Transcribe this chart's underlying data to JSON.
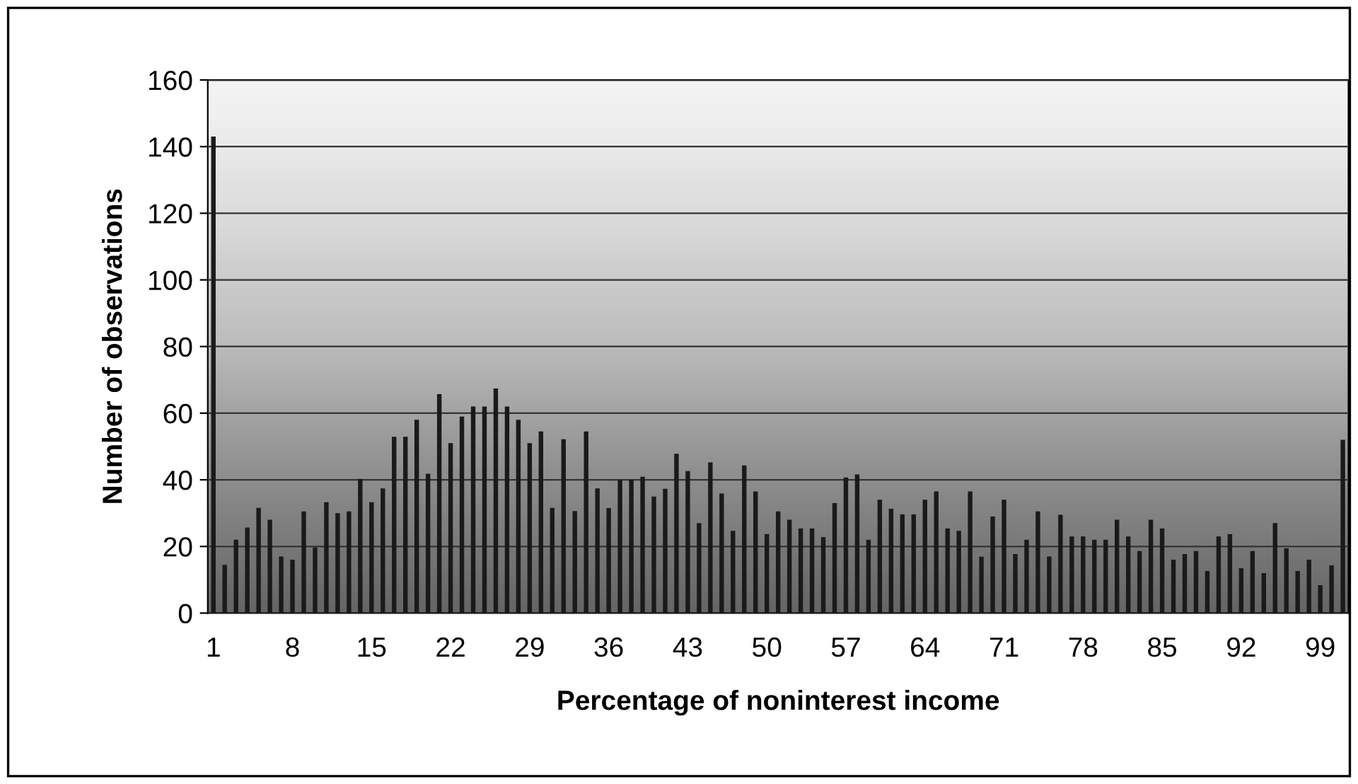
{
  "chart_data": {
    "type": "bar",
    "xlabel": "Percentage of noninterest income",
    "ylabel": "Number of observations",
    "categories": [
      "1",
      null,
      null,
      null,
      null,
      null,
      null,
      "8",
      null,
      null,
      null,
      null,
      null,
      null,
      "15",
      null,
      null,
      null,
      null,
      null,
      null,
      "22",
      null,
      null,
      null,
      null,
      null,
      null,
      "29",
      null,
      null,
      null,
      null,
      null,
      null,
      "36",
      null,
      null,
      null,
      null,
      null,
      null,
      "43",
      null,
      null,
      null,
      null,
      null,
      null,
      "50",
      null,
      null,
      null,
      null,
      null,
      null,
      "57",
      null,
      null,
      null,
      null,
      null,
      null,
      "64",
      null,
      null,
      null,
      null,
      null,
      null,
      "71",
      null,
      null,
      null,
      null,
      null,
      null,
      "78",
      null,
      null,
      null,
      null,
      null,
      null,
      "85",
      null,
      null,
      null,
      null,
      null,
      null,
      "92",
      null,
      null,
      null,
      null,
      null,
      null,
      "99",
      null,
      null
    ],
    "values": [
      143,
      14.5,
      22,
      25.7,
      31.6,
      28,
      17,
      16,
      30.5,
      19.7,
      33.3,
      30,
      30.5,
      40.3,
      33.3,
      37.4,
      52.9,
      52.9,
      58,
      41.8,
      65.7,
      51,
      59,
      62,
      62,
      67.4,
      62,
      58,
      51,
      54.5,
      31.6,
      52.2,
      30.6,
      54.5,
      37.4,
      31.5,
      40,
      40,
      40.9,
      35,
      37.3,
      47.8,
      42.6,
      27,
      45.2,
      35.9,
      24.7,
      44.3,
      36.5,
      23.7,
      30.5,
      28,
      25.4,
      25.4,
      22.8,
      33,
      40.7,
      41.6,
      22,
      34,
      31.3,
      29.6,
      29.6,
      34,
      36.5,
      25.4,
      24.7,
      36.5,
      16.9,
      29,
      34,
      17.7,
      22,
      30.5,
      17,
      29.5,
      23,
      23,
      22,
      22,
      28,
      23,
      18.6,
      28,
      25.4,
      16,
      17.7,
      18.6,
      12.6,
      23,
      23.7,
      13.5,
      18.6,
      12,
      27,
      19.4,
      12.6,
      16,
      8.4,
      14.3,
      52
    ],
    "color": "#1a1a1a",
    "ylim": [
      0,
      160
    ],
    "yticks": [
      0,
      20,
      40,
      60,
      80,
      100,
      120,
      140,
      160
    ],
    "grid": "y"
  }
}
